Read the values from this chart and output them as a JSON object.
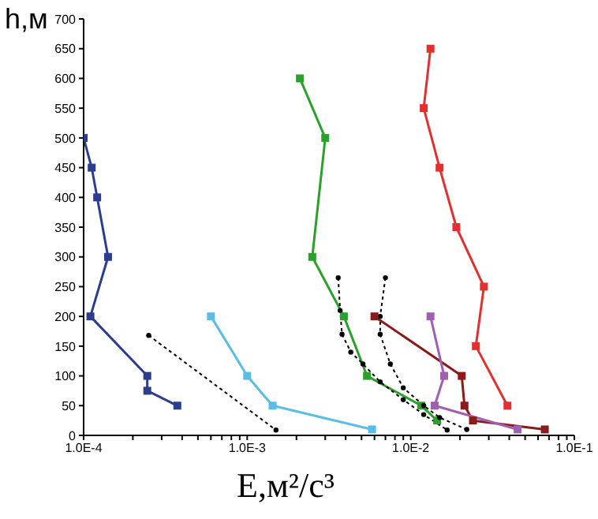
{
  "chart_data": {
    "type": "line",
    "xlabel": "E,м²/с³",
    "ylabel": "h,м",
    "log": "x",
    "xlim": [
      0.0001,
      0.1
    ],
    "ylim": [
      0,
      700
    ],
    "xticks": [
      {
        "value": 0.0001,
        "label": "1.0E-4"
      },
      {
        "value": 0.0002,
        "label": null
      },
      {
        "value": 0.0003,
        "label": null
      },
      {
        "value": 0.0004,
        "label": null
      },
      {
        "value": 0.0005,
        "label": null
      },
      {
        "value": 0.0006,
        "label": null
      },
      {
        "value": 0.0007,
        "label": null
      },
      {
        "value": 0.0008,
        "label": null
      },
      {
        "value": 0.0009,
        "label": null
      },
      {
        "value": 0.001,
        "label": "1.0E-3"
      },
      {
        "value": 0.002,
        "label": null
      },
      {
        "value": 0.003,
        "label": null
      },
      {
        "value": 0.004,
        "label": null
      },
      {
        "value": 0.005,
        "label": null
      },
      {
        "value": 0.006,
        "label": null
      },
      {
        "value": 0.007,
        "label": null
      },
      {
        "value": 0.008,
        "label": null
      },
      {
        "value": 0.009,
        "label": null
      },
      {
        "value": 0.01,
        "label": "1.0E-2"
      },
      {
        "value": 0.02,
        "label": null
      },
      {
        "value": 0.03,
        "label": null
      },
      {
        "value": 0.04,
        "label": null
      },
      {
        "value": 0.05,
        "label": null
      },
      {
        "value": 0.06,
        "label": null
      },
      {
        "value": 0.07,
        "label": null
      },
      {
        "value": 0.08,
        "label": null
      },
      {
        "value": 0.09,
        "label": null
      },
      {
        "value": 0.1,
        "label": "1.0E-1"
      }
    ],
    "yticks": [
      0,
      50,
      100,
      150,
      200,
      250,
      300,
      350,
      400,
      450,
      500,
      550,
      600,
      650,
      700
    ],
    "series": [
      {
        "color": "#2b3d8f",
        "marker": "square",
        "line_style": "solid",
        "x": [
          0.0001,
          0.000112,
          0.000121,
          0.000141,
          0.00011,
          0.000245,
          0.000245,
          0.000374
        ],
        "values": [
          500,
          450,
          400,
          300,
          200,
          100,
          75,
          50
        ]
      },
      {
        "color": "#000000",
        "marker": "circle",
        "line_style": "dotted",
        "x": [
          0.00025,
          0.0015
        ],
        "values": [
          168,
          9
        ]
      },
      {
        "color": "#5bbde6",
        "marker": "square",
        "line_style": "solid",
        "x": [
          0.0006,
          0.001,
          0.00143,
          0.0058
        ],
        "values": [
          200,
          100,
          50,
          10
        ]
      },
      {
        "color": "#2ca02c",
        "marker": "square",
        "line_style": "solid",
        "x": [
          0.0021,
          0.003,
          0.0025,
          0.0039,
          0.0054,
          0.0116,
          0.0145
        ],
        "values": [
          600,
          500,
          300,
          200,
          100,
          50,
          25
        ]
      },
      {
        "color": "#000000",
        "marker": "circle",
        "line_style": "dotted",
        "x": [
          0.0036,
          0.0037,
          0.0038,
          0.0043,
          0.0051,
          0.0065,
          0.009,
          0.012,
          0.0167
        ],
        "values": [
          265,
          210,
          170,
          140,
          120,
          90,
          60,
          35,
          9
        ]
      },
      {
        "color": "#000000",
        "marker": "circle",
        "line_style": "dotted",
        "x": [
          0.007,
          0.0065,
          0.0065,
          0.0075,
          0.009,
          0.012,
          0.015,
          0.022
        ],
        "values": [
          265,
          200,
          170,
          120,
          80,
          50,
          30,
          10
        ]
      },
      {
        "color": "#8b1a1a",
        "marker": "square",
        "line_style": "solid",
        "x": [
          0.006,
          0.0205,
          0.0213,
          0.024,
          0.066
        ],
        "values": [
          200,
          100,
          50,
          25,
          10
        ]
      },
      {
        "color": "#a05fb0",
        "marker": "square",
        "line_style": "solid",
        "x": [
          0.0132,
          0.016,
          0.014,
          0.045
        ],
        "values": [
          200,
          100,
          50,
          10
        ]
      },
      {
        "color": "#e03030",
        "marker": "square",
        "line_style": "solid",
        "x": [
          0.0132,
          0.012,
          0.015,
          0.019,
          0.028,
          0.025,
          0.039
        ],
        "values": [
          650,
          550,
          450,
          350,
          250,
          150,
          50
        ]
      }
    ]
  }
}
